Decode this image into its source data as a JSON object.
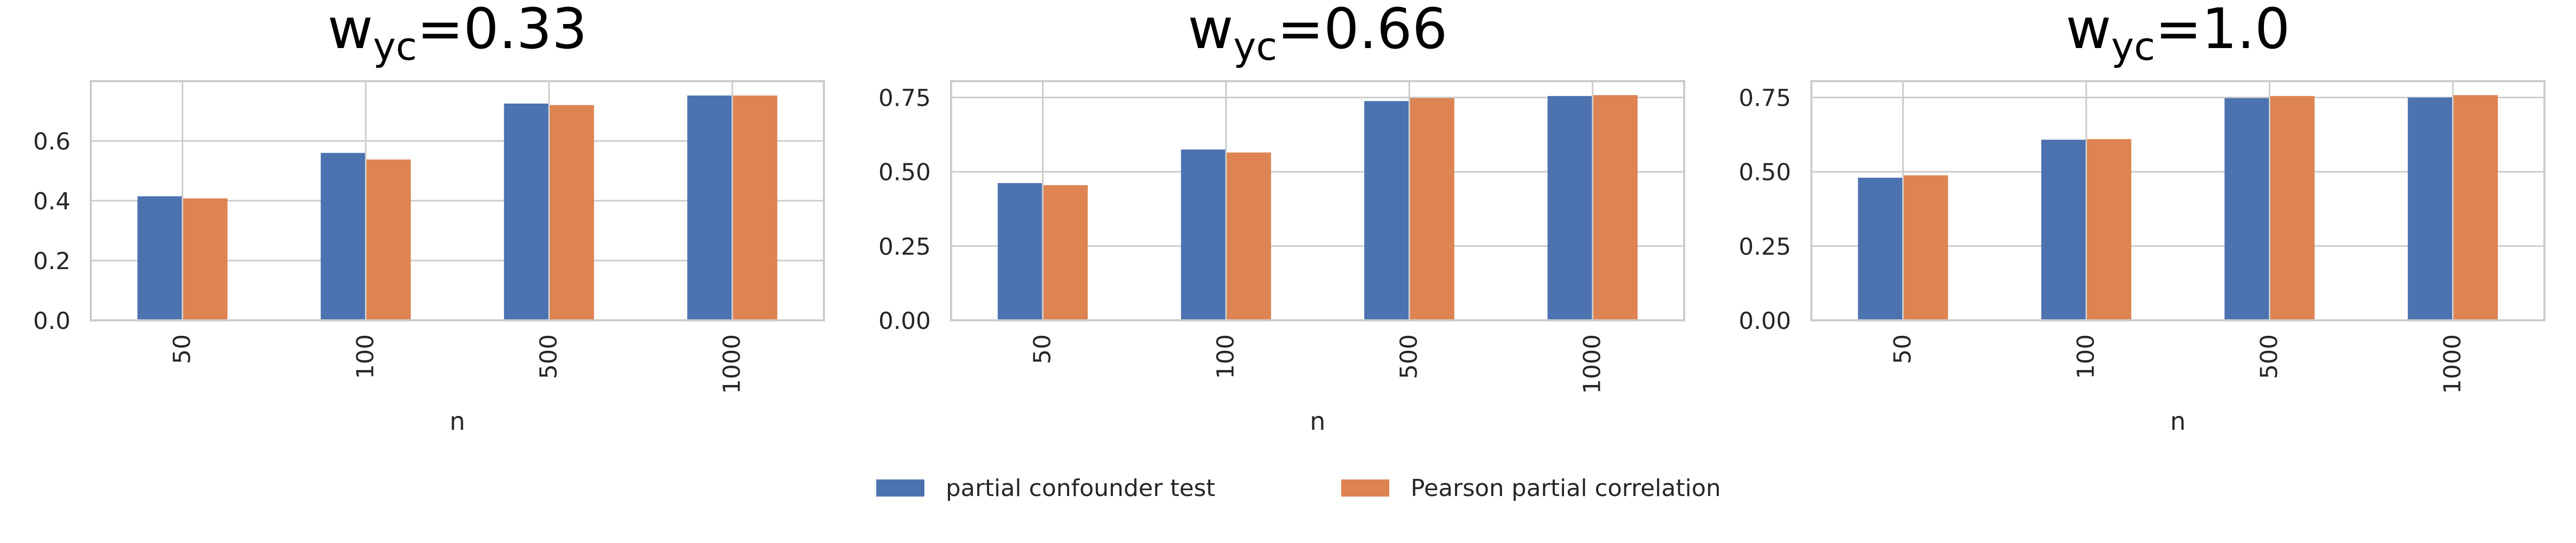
{
  "chart_data": [
    {
      "type": "bar",
      "title": {
        "base": "w",
        "sub": "yc",
        "rest": "=0.33"
      },
      "xlabel": "n",
      "ylabel": "",
      "categories": [
        "50",
        "100",
        "500",
        "1000"
      ],
      "series": [
        {
          "name": "partial confounder test",
          "values": [
            0.415,
            0.56,
            0.725,
            0.752
          ]
        },
        {
          "name": "Pearson partial correlation",
          "values": [
            0.408,
            0.538,
            0.72,
            0.752
          ]
        }
      ],
      "ylim": [
        0,
        0.8
      ],
      "yticks": [
        0,
        0.2,
        0.4,
        0.6
      ],
      "ytick_labels": [
        "0.0",
        "0.2",
        "0.4",
        "0.6"
      ],
      "grid": true
    },
    {
      "type": "bar",
      "title": {
        "base": "w",
        "sub": "yc",
        "rest": "=0.66"
      },
      "xlabel": "n",
      "ylabel": "",
      "categories": [
        "50",
        "100",
        "500",
        "1000"
      ],
      "series": [
        {
          "name": "partial confounder test",
          "values": [
            0.462,
            0.575,
            0.738,
            0.755
          ]
        },
        {
          "name": "Pearson partial correlation",
          "values": [
            0.455,
            0.565,
            0.748,
            0.758
          ]
        }
      ],
      "ylim": [
        0,
        0.805
      ],
      "yticks": [
        0,
        0.25,
        0.5,
        0.75
      ],
      "ytick_labels": [
        "0.00",
        "0.25",
        "0.50",
        "0.75"
      ],
      "grid": true
    },
    {
      "type": "bar",
      "title": {
        "base": "w",
        "sub": "yc",
        "rest": "=1.0"
      },
      "xlabel": "n",
      "ylabel": "",
      "categories": [
        "50",
        "100",
        "500",
        "1000"
      ],
      "series": [
        {
          "name": "partial confounder test",
          "values": [
            0.48,
            0.608,
            0.748,
            0.75
          ]
        },
        {
          "name": "Pearson partial correlation",
          "values": [
            0.488,
            0.61,
            0.755,
            0.758
          ]
        }
      ],
      "ylim": [
        0,
        0.805
      ],
      "yticks": [
        0,
        0.25,
        0.5,
        0.75
      ],
      "ytick_labels": [
        "0.00",
        "0.25",
        "0.50",
        "0.75"
      ],
      "grid": true
    }
  ],
  "legend": {
    "placement": "bottom-center",
    "items": [
      {
        "label": "partial confounder test",
        "color": "#4c72b0"
      },
      {
        "label": "Pearson partial correlation",
        "color": "#dd8452"
      }
    ]
  },
  "colors": {
    "series": [
      "#4c72b0",
      "#dd8452"
    ],
    "grid": "#cccccc",
    "frame": "#cccccc",
    "text": "#262626"
  }
}
